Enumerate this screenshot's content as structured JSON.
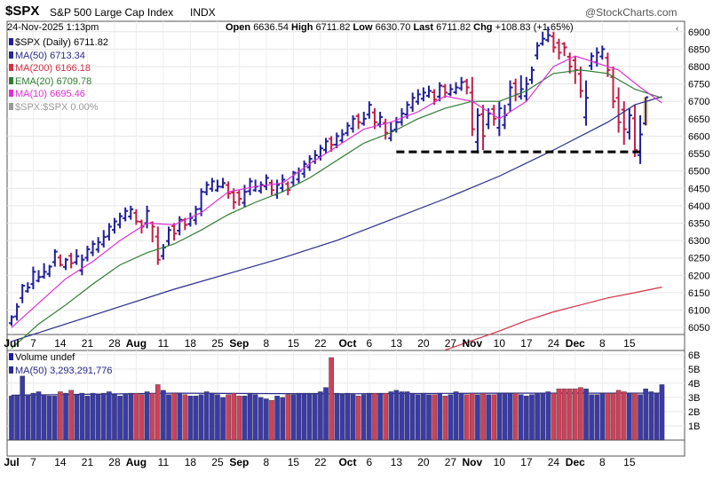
{
  "header": {
    "symbol": "$SPX",
    "name": "S&P 500 Large Cap Index",
    "exchange": "INDX",
    "date": "24-Nov-2025 1:13pm",
    "open_label": "Open",
    "open": "6636.54",
    "high_label": "High",
    "high": "6711.82",
    "low_label": "Low",
    "low": "6630.70",
    "last_label": "Last",
    "last": "6711.82",
    "chg_label": "Chg",
    "chg": "+108.83 (+1.65%)",
    "brand": "@StockCharts.com"
  },
  "legend": {
    "price": "$SPX (Daily) 6711.82",
    "ma50": "MA(50) 6713.34",
    "ma200": "MA(200) 6166.18",
    "ema20": "EMA(20) 6709.78",
    "ma10": "MA(10) 6695.46",
    "rel": "$SPX:$SPX 0.00%"
  },
  "volume_legend": {
    "title": "Volume undef",
    "ma50": "MA(50) 3,293,291,776"
  },
  "colors": {
    "up": "#1f1f9b",
    "down": "#c41e45",
    "ma50": "#2a2a8c",
    "ma200": "#d33245",
    "ema20": "#2e7d32",
    "ma10": "#e030d8",
    "rel": "#999999",
    "vol_up": "#3a3aa8",
    "vol_down": "#d0405a",
    "highlight": "#f3e28a",
    "support": "#000000"
  },
  "chart_data": {
    "type": "line",
    "price_axis": {
      "ticks": [
        6050,
        6100,
        6150,
        6200,
        6250,
        6300,
        6350,
        6400,
        6450,
        6500,
        6550,
        6600,
        6650,
        6700,
        6750,
        6800,
        6850,
        6900
      ],
      "ylim": [
        6030,
        6930
      ]
    },
    "volume_axis": {
      "ticks": [
        1,
        2,
        3,
        4,
        5,
        6
      ],
      "labels": [
        "1B",
        "2B",
        "3B",
        "4B",
        "5B",
        "6B"
      ],
      "ylim": [
        0,
        6.3
      ]
    },
    "x_labels": [
      "Jul",
      "7",
      "14",
      "21",
      "28",
      "Aug",
      "11",
      "18",
      "25",
      "Sep",
      "8",
      "15",
      "22",
      "Oct",
      "6",
      "13",
      "20",
      "27",
      "Nov",
      "10",
      "17",
      "24",
      "Dec",
      "8",
      "15"
    ],
    "x_label_bold": [
      "Jul",
      "Aug",
      "Sep",
      "Oct",
      "Nov",
      "Dec"
    ],
    "x_label_slots": [
      0,
      4,
      9,
      14,
      19,
      23,
      28,
      33,
      38,
      42,
      47,
      52,
      57,
      62,
      66,
      71,
      76,
      81,
      85,
      90,
      95,
      100,
      104,
      109,
      114
    ],
    "support_level": 6555,
    "bars": [
      {
        "h": 6085,
        "l": 6055,
        "c": 6080,
        "up": true
      },
      {
        "h": 6120,
        "l": 6070,
        "c": 6110,
        "up": true
      },
      {
        "h": 6175,
        "l": 6120,
        "c": 6170,
        "up": true
      },
      {
        "h": 6180,
        "l": 6150,
        "c": 6165,
        "up": true
      },
      {
        "h": 6225,
        "l": 6160,
        "c": 6210,
        "up": true
      },
      {
        "h": 6215,
        "l": 6180,
        "c": 6195,
        "up": true
      },
      {
        "h": 6235,
        "l": 6190,
        "c": 6210,
        "up": true
      },
      {
        "h": 6230,
        "l": 6195,
        "c": 6225,
        "up": true
      },
      {
        "h": 6275,
        "l": 6225,
        "c": 6268,
        "up": true
      },
      {
        "h": 6260,
        "l": 6225,
        "c": 6230,
        "up": false
      },
      {
        "h": 6250,
        "l": 6215,
        "c": 6245,
        "up": true
      },
      {
        "h": 6265,
        "l": 6220,
        "c": 6235,
        "up": false
      },
      {
        "h": 6275,
        "l": 6230,
        "c": 6255,
        "up": true
      },
      {
        "h": 6260,
        "l": 6200,
        "c": 6245,
        "up": true
      },
      {
        "h": 6285,
        "l": 6240,
        "c": 6275,
        "up": true
      },
      {
        "h": 6300,
        "l": 6255,
        "c": 6290,
        "up": true
      },
      {
        "h": 6310,
        "l": 6265,
        "c": 6295,
        "up": true
      },
      {
        "h": 6330,
        "l": 6280,
        "c": 6310,
        "up": true
      },
      {
        "h": 6350,
        "l": 6300,
        "c": 6340,
        "up": true
      },
      {
        "h": 6365,
        "l": 6320,
        "c": 6355,
        "up": true
      },
      {
        "h": 6380,
        "l": 6335,
        "c": 6370,
        "up": true
      },
      {
        "h": 6395,
        "l": 6355,
        "c": 6385,
        "up": true
      },
      {
        "h": 6400,
        "l": 6360,
        "c": 6390,
        "up": true
      },
      {
        "h": 6390,
        "l": 6345,
        "c": 6355,
        "up": false
      },
      {
        "h": 6360,
        "l": 6320,
        "c": 6340,
        "up": false
      },
      {
        "h": 6400,
        "l": 6335,
        "c": 6385,
        "up": true
      },
      {
        "h": 6355,
        "l": 6295,
        "c": 6340,
        "up": false
      },
      {
        "h": 6340,
        "l": 6230,
        "c": 6245,
        "up": false
      },
      {
        "h": 6290,
        "l": 6245,
        "c": 6280,
        "up": true
      },
      {
        "h": 6340,
        "l": 6285,
        "c": 6330,
        "up": true
      },
      {
        "h": 6350,
        "l": 6300,
        "c": 6320,
        "up": false
      },
      {
        "h": 6370,
        "l": 6315,
        "c": 6360,
        "up": true
      },
      {
        "h": 6365,
        "l": 6330,
        "c": 6345,
        "up": false
      },
      {
        "h": 6380,
        "l": 6340,
        "c": 6365,
        "up": true
      },
      {
        "h": 6400,
        "l": 6345,
        "c": 6390,
        "up": true
      },
      {
        "h": 6450,
        "l": 6370,
        "c": 6440,
        "up": true
      },
      {
        "h": 6470,
        "l": 6430,
        "c": 6460,
        "up": true
      },
      {
        "h": 6480,
        "l": 6440,
        "c": 6470,
        "up": true
      },
      {
        "h": 6475,
        "l": 6440,
        "c": 6455,
        "up": true
      },
      {
        "h": 6480,
        "l": 6450,
        "c": 6465,
        "up": true
      },
      {
        "h": 6470,
        "l": 6420,
        "c": 6435,
        "up": false
      },
      {
        "h": 6450,
        "l": 6390,
        "c": 6410,
        "up": false
      },
      {
        "h": 6445,
        "l": 6400,
        "c": 6420,
        "up": false
      },
      {
        "h": 6460,
        "l": 6395,
        "c": 6440,
        "up": true
      },
      {
        "h": 6480,
        "l": 6430,
        "c": 6470,
        "up": true
      },
      {
        "h": 6475,
        "l": 6440,
        "c": 6455,
        "up": true
      },
      {
        "h": 6470,
        "l": 6435,
        "c": 6460,
        "up": true
      },
      {
        "h": 6490,
        "l": 6445,
        "c": 6480,
        "up": true
      },
      {
        "h": 6475,
        "l": 6430,
        "c": 6445,
        "up": false
      },
      {
        "h": 6475,
        "l": 6420,
        "c": 6460,
        "up": true
      },
      {
        "h": 6490,
        "l": 6440,
        "c": 6475,
        "up": true
      },
      {
        "h": 6470,
        "l": 6430,
        "c": 6445,
        "up": false
      },
      {
        "h": 6500,
        "l": 6455,
        "c": 6495,
        "up": true
      },
      {
        "h": 6510,
        "l": 6465,
        "c": 6500,
        "up": true
      },
      {
        "h": 6530,
        "l": 6480,
        "c": 6520,
        "up": true
      },
      {
        "h": 6545,
        "l": 6500,
        "c": 6535,
        "up": true
      },
      {
        "h": 6560,
        "l": 6520,
        "c": 6545,
        "up": true
      },
      {
        "h": 6575,
        "l": 6530,
        "c": 6565,
        "up": true
      },
      {
        "h": 6595,
        "l": 6550,
        "c": 6585,
        "up": true
      },
      {
        "h": 6600,
        "l": 6555,
        "c": 6575,
        "up": false
      },
      {
        "h": 6610,
        "l": 6565,
        "c": 6600,
        "up": true
      },
      {
        "h": 6620,
        "l": 6580,
        "c": 6605,
        "up": true
      },
      {
        "h": 6640,
        "l": 6600,
        "c": 6630,
        "up": true
      },
      {
        "h": 6660,
        "l": 6610,
        "c": 6650,
        "up": true
      },
      {
        "h": 6665,
        "l": 6620,
        "c": 6640,
        "up": false
      },
      {
        "h": 6670,
        "l": 6630,
        "c": 6650,
        "up": true
      },
      {
        "h": 6700,
        "l": 6650,
        "c": 6690,
        "up": true
      },
      {
        "h": 6680,
        "l": 6620,
        "c": 6640,
        "up": false
      },
      {
        "h": 6670,
        "l": 6625,
        "c": 6655,
        "up": true
      },
      {
        "h": 6650,
        "l": 6590,
        "c": 6610,
        "up": false
      },
      {
        "h": 6640,
        "l": 6585,
        "c": 6615,
        "up": true
      },
      {
        "h": 6655,
        "l": 6610,
        "c": 6640,
        "up": true
      },
      {
        "h": 6680,
        "l": 6630,
        "c": 6665,
        "up": true
      },
      {
        "h": 6700,
        "l": 6650,
        "c": 6690,
        "up": true
      },
      {
        "h": 6725,
        "l": 6670,
        "c": 6710,
        "up": true
      },
      {
        "h": 6735,
        "l": 6690,
        "c": 6720,
        "up": true
      },
      {
        "h": 6740,
        "l": 6700,
        "c": 6725,
        "up": true
      },
      {
        "h": 6745,
        "l": 6710,
        "c": 6730,
        "up": true
      },
      {
        "h": 6735,
        "l": 6690,
        "c": 6705,
        "up": false
      },
      {
        "h": 6755,
        "l": 6700,
        "c": 6745,
        "up": true
      },
      {
        "h": 6750,
        "l": 6710,
        "c": 6725,
        "up": false
      },
      {
        "h": 6750,
        "l": 6715,
        "c": 6735,
        "up": true
      },
      {
        "h": 6755,
        "l": 6720,
        "c": 6740,
        "up": true
      },
      {
        "h": 6770,
        "l": 6730,
        "c": 6755,
        "up": true
      },
      {
        "h": 6765,
        "l": 6720,
        "c": 6740,
        "up": false
      },
      {
        "h": 6770,
        "l": 6600,
        "c": 6620,
        "up": false
      },
      {
        "h": 6680,
        "l": 6550,
        "c": 6660,
        "up": true
      },
      {
        "h": 6690,
        "l": 6560,
        "c": 6600,
        "up": false
      },
      {
        "h": 6680,
        "l": 6620,
        "c": 6665,
        "up": true
      },
      {
        "h": 6690,
        "l": 6630,
        "c": 6650,
        "up": false
      },
      {
        "h": 6700,
        "l": 6600,
        "c": 6680,
        "up": true
      },
      {
        "h": 6690,
        "l": 6620,
        "c": 6660,
        "up": true
      },
      {
        "h": 6760,
        "l": 6670,
        "c": 6740,
        "up": true
      },
      {
        "h": 6765,
        "l": 6700,
        "c": 6720,
        "up": false
      },
      {
        "h": 6775,
        "l": 6705,
        "c": 6735,
        "up": true
      },
      {
        "h": 6770,
        "l": 6700,
        "c": 6750,
        "up": true
      },
      {
        "h": 6800,
        "l": 6750,
        "c": 6790,
        "up": true
      },
      {
        "h": 6870,
        "l": 6820,
        "c": 6860,
        "up": true
      },
      {
        "h": 6900,
        "l": 6860,
        "c": 6880,
        "up": true
      },
      {
        "h": 6915,
        "l": 6870,
        "c": 6890,
        "up": true
      },
      {
        "h": 6900,
        "l": 6840,
        "c": 6855,
        "up": false
      },
      {
        "h": 6880,
        "l": 6820,
        "c": 6840,
        "up": false
      },
      {
        "h": 6870,
        "l": 6830,
        "c": 6855,
        "up": false
      },
      {
        "h": 6840,
        "l": 6780,
        "c": 6800,
        "up": false
      },
      {
        "h": 6830,
        "l": 6750,
        "c": 6790,
        "up": false
      },
      {
        "h": 6800,
        "l": 6710,
        "c": 6730,
        "up": false
      },
      {
        "h": 6760,
        "l": 6630,
        "c": 6710,
        "up": true
      },
      {
        "h": 6840,
        "l": 6790,
        "c": 6830,
        "up": true
      },
      {
        "h": 6855,
        "l": 6800,
        "c": 6840,
        "up": true
      },
      {
        "h": 6860,
        "l": 6820,
        "c": 6850,
        "up": true
      },
      {
        "h": 6840,
        "l": 6770,
        "c": 6790,
        "up": false
      },
      {
        "h": 6800,
        "l": 6680,
        "c": 6700,
        "up": false
      },
      {
        "h": 6740,
        "l": 6610,
        "c": 6640,
        "up": false
      },
      {
        "h": 6700,
        "l": 6575,
        "c": 6620,
        "up": false
      },
      {
        "h": 6680,
        "l": 6590,
        "c": 6660,
        "up": true
      },
      {
        "h": 6690,
        "l": 6540,
        "c": 6560,
        "up": false
      },
      {
        "h": 6660,
        "l": 6520,
        "c": 6605,
        "up": true
      },
      {
        "h": 6711.82,
        "l": 6630.7,
        "o": 6636.54,
        "c": 6711.82,
        "up": true,
        "current": true
      }
    ],
    "ma50": [
      [
        0,
        6010
      ],
      [
        10,
        6060
      ],
      [
        20,
        6110
      ],
      [
        30,
        6160
      ],
      [
        40,
        6205
      ],
      [
        50,
        6250
      ],
      [
        60,
        6300
      ],
      [
        70,
        6360
      ],
      [
        80,
        6420
      ],
      [
        90,
        6485
      ],
      [
        100,
        6560
      ],
      [
        110,
        6640
      ],
      [
        115,
        6690
      ],
      [
        120,
        6713.34
      ]
    ],
    "ma200": [
      [
        80,
        5985
      ],
      [
        90,
        6040
      ],
      [
        95,
        6070
      ],
      [
        100,
        6095
      ],
      [
        105,
        6115
      ],
      [
        110,
        6135
      ],
      [
        115,
        6150
      ],
      [
        120,
        6166.18
      ]
    ],
    "ema20": [
      [
        0,
        5990
      ],
      [
        5,
        6060
      ],
      [
        10,
        6115
      ],
      [
        15,
        6175
      ],
      [
        20,
        6230
      ],
      [
        25,
        6265
      ],
      [
        30,
        6290
      ],
      [
        35,
        6330
      ],
      [
        40,
        6375
      ],
      [
        45,
        6410
      ],
      [
        50,
        6440
      ],
      [
        55,
        6480
      ],
      [
        60,
        6530
      ],
      [
        65,
        6580
      ],
      [
        70,
        6610
      ],
      [
        75,
        6650
      ],
      [
        80,
        6680
      ],
      [
        85,
        6700
      ],
      [
        90,
        6700
      ],
      [
        95,
        6730
      ],
      [
        100,
        6780
      ],
      [
        105,
        6790
      ],
      [
        110,
        6780
      ],
      [
        115,
        6735
      ],
      [
        120,
        6709.78
      ]
    ],
    "ma10": [
      [
        0,
        6050
      ],
      [
        5,
        6120
      ],
      [
        10,
        6190
      ],
      [
        15,
        6240
      ],
      [
        20,
        6300
      ],
      [
        25,
        6350
      ],
      [
        30,
        6345
      ],
      [
        35,
        6380
      ],
      [
        40,
        6440
      ],
      [
        45,
        6455
      ],
      [
        50,
        6465
      ],
      [
        55,
        6520
      ],
      [
        60,
        6570
      ],
      [
        65,
        6620
      ],
      [
        70,
        6640
      ],
      [
        75,
        6670
      ],
      [
        80,
        6715
      ],
      [
        85,
        6700
      ],
      [
        90,
        6650
      ],
      [
        95,
        6700
      ],
      [
        100,
        6800
      ],
      [
        104,
        6830
      ],
      [
        108,
        6810
      ],
      [
        112,
        6790
      ],
      [
        116,
        6740
      ],
      [
        120,
        6695.46
      ]
    ],
    "volume": [
      3.1,
      3.1,
      4.5,
      3.2,
      3.3,
      3.4,
      3.2,
      3.1,
      3.1,
      3.4,
      3.3,
      3.5,
      3.2,
      3.3,
      3.1,
      3.3,
      3.2,
      3.3,
      3.4,
      3.2,
      3.1,
      3.2,
      3.3,
      3.3,
      3.2,
      3.4,
      3.3,
      3.9,
      3.5,
      3.2,
      3.3,
      3.3,
      3.2,
      3.1,
      3.1,
      3.2,
      3.4,
      3.3,
      3.2,
      3.0,
      3.2,
      3.3,
      3.1,
      3.1,
      3.3,
      3.2,
      3.0,
      2.9,
      2.8,
      3.1,
      3.0,
      3.2,
      3.2,
      3.3,
      3.3,
      3.3,
      3.3,
      3.4,
      3.7,
      5.8,
      3.3,
      3.2,
      3.3,
      3.2,
      3.1,
      3.2,
      3.3,
      3.3,
      3.3,
      3.3,
      3.4,
      3.5,
      3.4,
      3.4,
      3.3,
      3.2,
      3.3,
      3.2,
      3.2,
      3.3,
      3.1,
      3.2,
      3.4,
      3.3,
      3.2,
      3.3,
      3.2,
      3.3,
      3.2,
      3.2,
      3.3,
      3.3,
      3.3,
      3.3,
      3.2,
      3.1,
      3.2,
      3.3,
      3.3,
      3.4,
      3.3,
      3.6,
      3.6,
      3.6,
      3.6,
      3.7,
      3.6,
      3.2,
      3.2,
      3.3,
      3.3,
      3.3,
      3.5,
      3.4,
      3.3,
      3.3,
      3.2,
      3.6,
      3.4,
      3.3,
      3.9
    ],
    "volume_ma50": [
      [
        0,
        3.15
      ],
      [
        30,
        3.3
      ],
      [
        60,
        3.25
      ],
      [
        90,
        3.3
      ],
      [
        120,
        3.3
      ]
    ]
  }
}
